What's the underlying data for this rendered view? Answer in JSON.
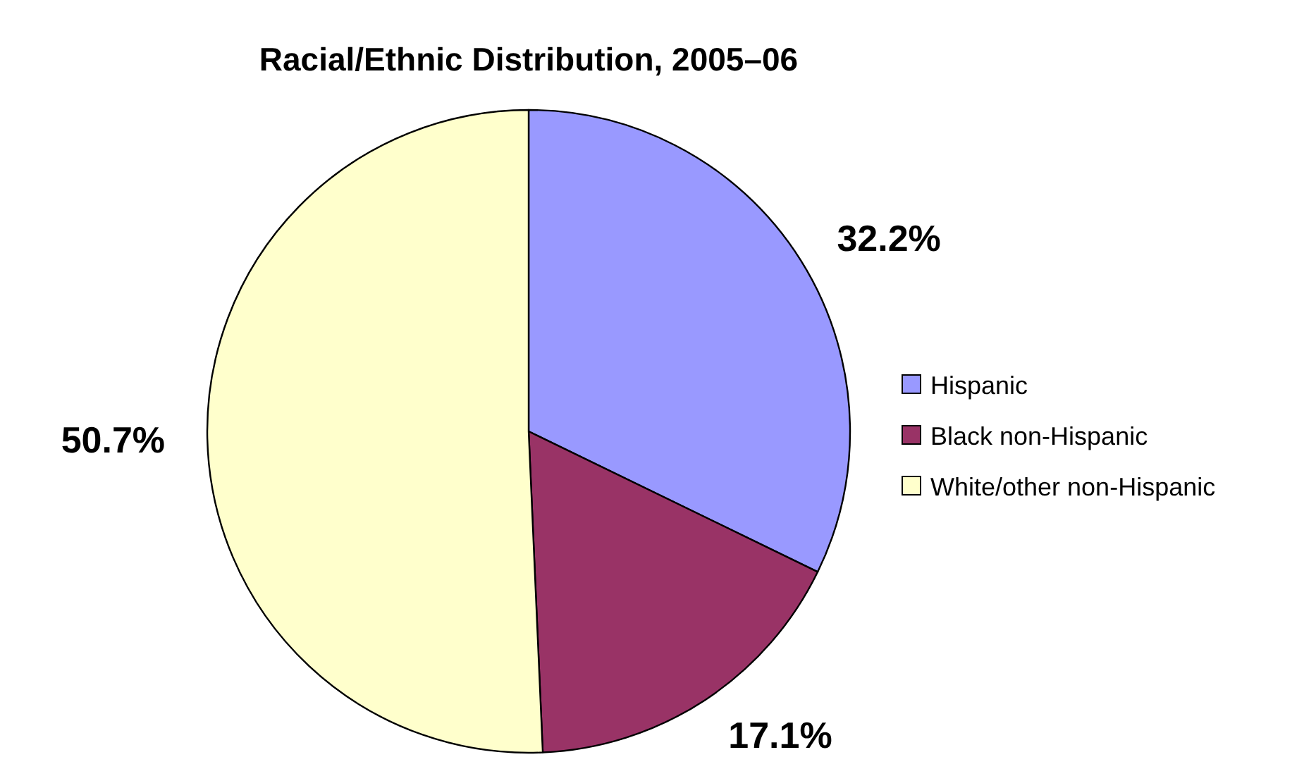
{
  "chart_data": {
    "type": "pie",
    "title": "Racial/Ethnic Distribution, 2005–06",
    "categories": [
      "Hispanic",
      "Black non-Hispanic",
      "White/other non-Hispanic"
    ],
    "values": [
      32.2,
      17.1,
      50.7
    ],
    "colors": [
      "#9999ff",
      "#993366",
      "#ffffcc"
    ],
    "value_labels": [
      "32.2%",
      "17.1%",
      "50.7%"
    ],
    "legend": "right"
  }
}
